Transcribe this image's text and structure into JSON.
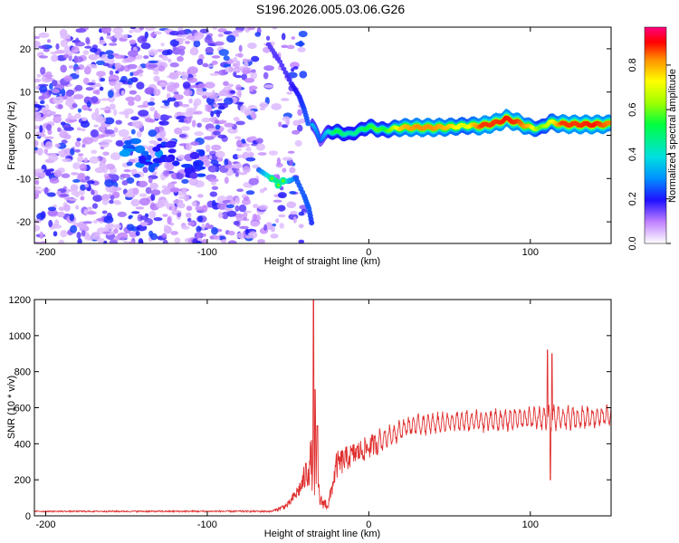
{
  "title": "S196.2026.005.03.06.G26",
  "chart_data": [
    {
      "type": "heatmap",
      "name": "spectrogram",
      "xlabel": "Height of straight line (km)",
      "ylabel": "Frequency (Hz)",
      "xlim": [
        -207,
        150
      ],
      "ylim": [
        -25,
        25
      ],
      "xticks": [
        -200,
        -100,
        0,
        100
      ],
      "yticks": [
        -20,
        -10,
        0,
        10,
        20
      ],
      "xtick_labels": [
        "-200",
        "-100",
        "0",
        "100"
      ],
      "ytick_labels": [
        "-20",
        "-10",
        "0",
        "10",
        "20"
      ],
      "colorbar": {
        "label": "Normalized spectral amplitude",
        "range": [
          0,
          0.97
        ],
        "ticks": [
          0.0,
          0.2,
          0.4,
          0.6,
          0.8
        ],
        "tick_labels": [
          "0.0",
          "0.2",
          "0.4",
          "0.6",
          "0.8"
        ]
      },
      "noise_region_x": [
        -207,
        -60
      ],
      "ridge": [
        {
          "x": -35,
          "y": 2.5,
          "a": 0.35
        },
        {
          "x": -30,
          "y": -1,
          "a": 0.25
        },
        {
          "x": -25,
          "y": 0.8,
          "a": 0.4
        },
        {
          "x": -20,
          "y": 0.8,
          "a": 0.55
        },
        {
          "x": -12,
          "y": 0.2,
          "a": 0.45
        },
        {
          "x": -5,
          "y": 1.2,
          "a": 0.5
        },
        {
          "x": 0,
          "y": 2.0,
          "a": 0.55
        },
        {
          "x": 5,
          "y": 1.5,
          "a": 0.6
        },
        {
          "x": 10,
          "y": 1.2,
          "a": 0.55
        },
        {
          "x": 15,
          "y": 1.5,
          "a": 0.65
        },
        {
          "x": 20,
          "y": 1.8,
          "a": 0.8
        },
        {
          "x": 30,
          "y": 1.8,
          "a": 0.85
        },
        {
          "x": 40,
          "y": 1.8,
          "a": 0.85
        },
        {
          "x": 50,
          "y": 1.9,
          "a": 0.8
        },
        {
          "x": 60,
          "y": 2.2,
          "a": 0.7
        },
        {
          "x": 70,
          "y": 2.2,
          "a": 0.9
        },
        {
          "x": 80,
          "y": 3.0,
          "a": 0.9
        },
        {
          "x": 85,
          "y": 3.8,
          "a": 0.92
        },
        {
          "x": 92,
          "y": 3.0,
          "a": 0.9
        },
        {
          "x": 100,
          "y": 1.8,
          "a": 0.8
        },
        {
          "x": 106,
          "y": 1.6,
          "a": 0.6
        },
        {
          "x": 112,
          "y": 3.0,
          "a": 0.7
        },
        {
          "x": 120,
          "y": 2.6,
          "a": 0.9
        },
        {
          "x": 130,
          "y": 2.5,
          "a": 0.9
        },
        {
          "x": 140,
          "y": 2.5,
          "a": 0.92
        },
        {
          "x": 150,
          "y": 2.6,
          "a": 0.85
        }
      ],
      "arc": [
        {
          "x": -62,
          "y": 21,
          "a": 0.2
        },
        {
          "x": -55,
          "y": 17,
          "a": 0.2
        },
        {
          "x": -48,
          "y": 12,
          "a": 0.22
        },
        {
          "x": -43,
          "y": 9,
          "a": 0.25
        },
        {
          "x": -40,
          "y": 6,
          "a": 0.28
        },
        {
          "x": -37,
          "y": 2,
          "a": 0.3
        }
      ],
      "descending": [
        {
          "x": -68,
          "y": -8,
          "a": 0.3
        },
        {
          "x": -60,
          "y": -10,
          "a": 0.55
        },
        {
          "x": -55,
          "y": -11,
          "a": 0.6
        },
        {
          "x": -45,
          "y": -10,
          "a": 0.3
        },
        {
          "x": -40,
          "y": -14,
          "a": 0.3
        },
        {
          "x": -37,
          "y": -17,
          "a": 0.3
        },
        {
          "x": -35,
          "y": -21,
          "a": 0.25
        }
      ],
      "cluster": [
        {
          "x": -145,
          "y": -3,
          "a": 0.3
        },
        {
          "x": -135,
          "y": -5,
          "a": 0.28
        },
        {
          "x": -125,
          "y": -4,
          "a": 0.25
        },
        {
          "x": -110,
          "y": -7,
          "a": 0.22
        }
      ]
    },
    {
      "type": "line",
      "name": "snr",
      "xlabel": "Height of straight line (km)",
      "ylabel": "SNR (10 * v/v)",
      "xlim": [
        -207,
        150
      ],
      "ylim": [
        0,
        1200
      ],
      "xticks": [
        -200,
        -100,
        0,
        100
      ],
      "yticks": [
        0,
        200,
        400,
        600,
        800,
        1000,
        1200
      ],
      "xtick_labels": [
        "-200",
        "-100",
        "0",
        "100"
      ],
      "ytick_labels": [
        "0",
        "200",
        "400",
        "600",
        "800",
        "1000",
        "1200"
      ],
      "color": "#e03030",
      "envelope": [
        {
          "x": -207,
          "base": 25,
          "amp": 6
        },
        {
          "x": -60,
          "base": 25,
          "amp": 8
        },
        {
          "x": -50,
          "base": 60,
          "amp": 30
        },
        {
          "x": -42,
          "base": 160,
          "amp": 80
        },
        {
          "x": -36,
          "base": 300,
          "amp": 220
        },
        {
          "x": -33,
          "base": 250,
          "amp": 300
        },
        {
          "x": -30,
          "base": 80,
          "amp": 60
        },
        {
          "x": -25,
          "base": 60,
          "amp": 50
        },
        {
          "x": -20,
          "base": 280,
          "amp": 130
        },
        {
          "x": -10,
          "base": 340,
          "amp": 110
        },
        {
          "x": 0,
          "base": 380,
          "amp": 110
        },
        {
          "x": 12,
          "base": 440,
          "amp": 80
        },
        {
          "x": 25,
          "base": 500,
          "amp": 80
        },
        {
          "x": 50,
          "base": 520,
          "amp": 80
        },
        {
          "x": 80,
          "base": 530,
          "amp": 90
        },
        {
          "x": 105,
          "base": 545,
          "amp": 90
        },
        {
          "x": 115,
          "base": 540,
          "amp": 100
        },
        {
          "x": 150,
          "base": 555,
          "amp": 80
        }
      ],
      "spikes": [
        {
          "x": -34.3,
          "y": 1200
        },
        {
          "x": -33.2,
          "y": 700
        },
        {
          "x": -31.8,
          "y": 500
        },
        {
          "x": 110.6,
          "y": 920
        },
        {
          "x": 112.4,
          "y": 200
        },
        {
          "x": 113.5,
          "y": 900
        }
      ]
    }
  ]
}
